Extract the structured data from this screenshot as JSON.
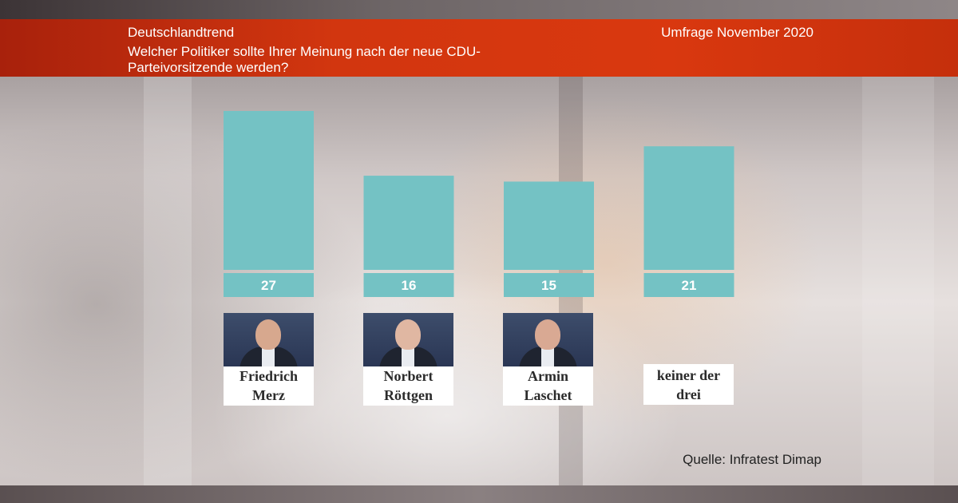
{
  "header": {
    "brand": "Deutschlandtrend",
    "question": "Welcher Politiker sollte Ihrer Meinung nach der neue CDU-Parteivorsitzende werden?",
    "date": "Umfrage November 2020"
  },
  "source": "Quelle: Infratest Dimap",
  "colors": {
    "bar": "#74c2c4",
    "header": "#d2360f"
  },
  "chart_data": {
    "type": "bar",
    "title": "Welcher Politiker sollte Ihrer Meinung nach der neue CDU-Parteivorsitzende werden?",
    "categories": [
      "Friedrich Merz",
      "Norbert Röttgen",
      "Armin Laschet",
      "keiner der drei"
    ],
    "values": [
      27,
      16,
      15,
      21
    ],
    "labels": [
      "27",
      "16",
      "15",
      "21"
    ]
  },
  "candidates": [
    {
      "line1": "Friedrich",
      "line2": "Merz",
      "photo_icon": "person-photo-icon"
    },
    {
      "line1": "Norbert",
      "line2": "Röttgen",
      "photo_icon": "person-photo-icon"
    },
    {
      "line1": "Armin",
      "line2": "Laschet",
      "photo_icon": "person-photo-icon"
    },
    {
      "line1": "keiner der",
      "line2": "drei"
    }
  ]
}
